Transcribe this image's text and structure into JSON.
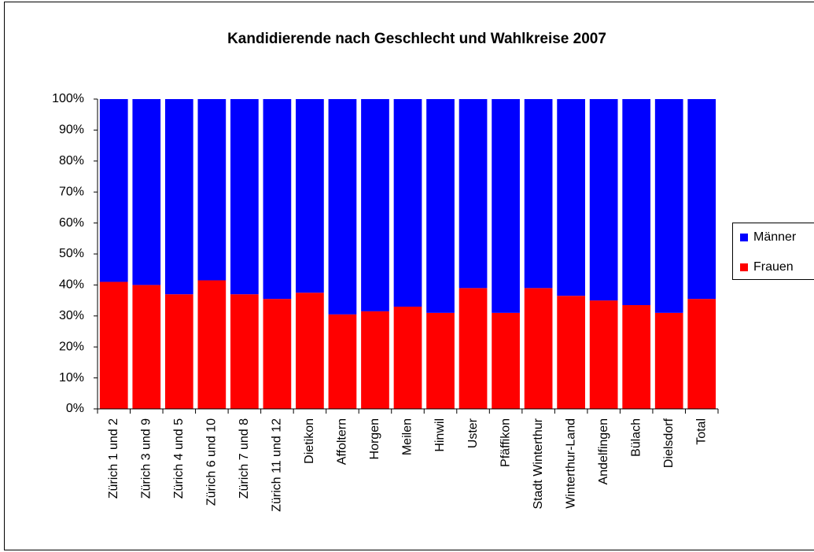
{
  "chart_data": {
    "type": "stacked_bar",
    "title": "Kandidierende nach Geschlecht und Wahlkreise 2007",
    "categories": [
      "Zürich 1 und 2",
      "Zürich 3 und 9",
      "Zürich 4 und 5",
      "Zürich 6 und 10",
      "Zürich 7 und 8",
      "Zürich 11 und 12",
      "Dietikon",
      "Affoltern",
      "Horgen",
      "Meilen",
      "Hinwil",
      "Uster",
      "Pfäffikon",
      "Stadt Winterthur",
      "Winterthur-Land",
      "Andelfingen",
      "Bülach",
      "Dielsdorf",
      "Total"
    ],
    "series": [
      {
        "name": "Frauen",
        "color": "#ff0000",
        "values": [
          41,
          40,
          37,
          41.5,
          37,
          35.5,
          37.5,
          30.5,
          31.5,
          33,
          31,
          39,
          31,
          39,
          36.5,
          35,
          33.5,
          31,
          35.5
        ]
      },
      {
        "name": "Männer",
        "color": "#0000ff",
        "values": [
          59,
          60,
          63,
          58.5,
          63,
          64.5,
          62.5,
          69.5,
          68.5,
          67,
          69,
          61,
          69,
          61,
          63.5,
          65,
          66.5,
          69,
          64.5
        ]
      }
    ],
    "ylim": [
      0,
      100
    ],
    "yticks": [
      {
        "value": 0,
        "label": "0%"
      },
      {
        "value": 10,
        "label": "10%"
      },
      {
        "value": 20,
        "label": "20%"
      },
      {
        "value": 30,
        "label": "30%"
      },
      {
        "value": 40,
        "label": "40%"
      },
      {
        "value": 50,
        "label": "50%"
      },
      {
        "value": 60,
        "label": "60%"
      },
      {
        "value": 70,
        "label": "70%"
      },
      {
        "value": 80,
        "label": "80%"
      },
      {
        "value": 90,
        "label": "90%"
      },
      {
        "value": 100,
        "label": "100%"
      }
    ],
    "grid": false,
    "legend": "right"
  }
}
